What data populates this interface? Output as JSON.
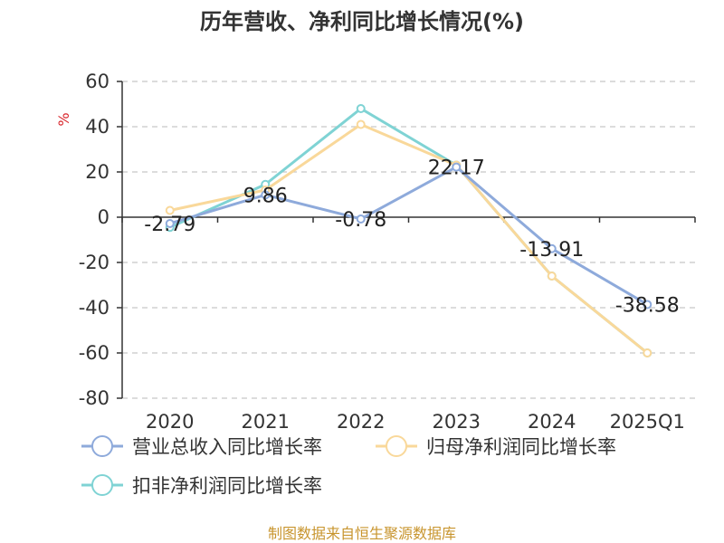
{
  "chart_data": {
    "type": "line",
    "title": "历年营收、净利同比增长情况(%)",
    "ylabel": "%",
    "xlabel": "",
    "categories": [
      "2020",
      "2021",
      "2022",
      "2023",
      "2024",
      "2025Q1"
    ],
    "ylim": [
      -80,
      60
    ],
    "yticks": [
      60,
      40,
      20,
      0,
      -20,
      -40,
      -60,
      -80
    ],
    "grid": true,
    "legend_position": "bottom",
    "series": [
      {
        "name": "营业总收入同比增长率",
        "color": "#8eaadb",
        "values": [
          -2.79,
          9.86,
          -0.78,
          22.17,
          -13.91,
          -38.58
        ],
        "labels": [
          "-2.79",
          "9.86",
          "-0.78",
          "22.17",
          "-13.91",
          "-38.58"
        ]
      },
      {
        "name": "归母净利润同比增长率",
        "color": "#f9d89a",
        "values": [
          3.0,
          12.0,
          41.0,
          23.0,
          -26.0,
          -60.0
        ]
      },
      {
        "name": "扣非净利润同比增长率",
        "color": "#7fd3d4",
        "values": [
          -4.5,
          14.5,
          48.0,
          23.0,
          -26.0,
          -60.0
        ]
      }
    ]
  },
  "source": "制图数据来自恒生聚源数据库"
}
